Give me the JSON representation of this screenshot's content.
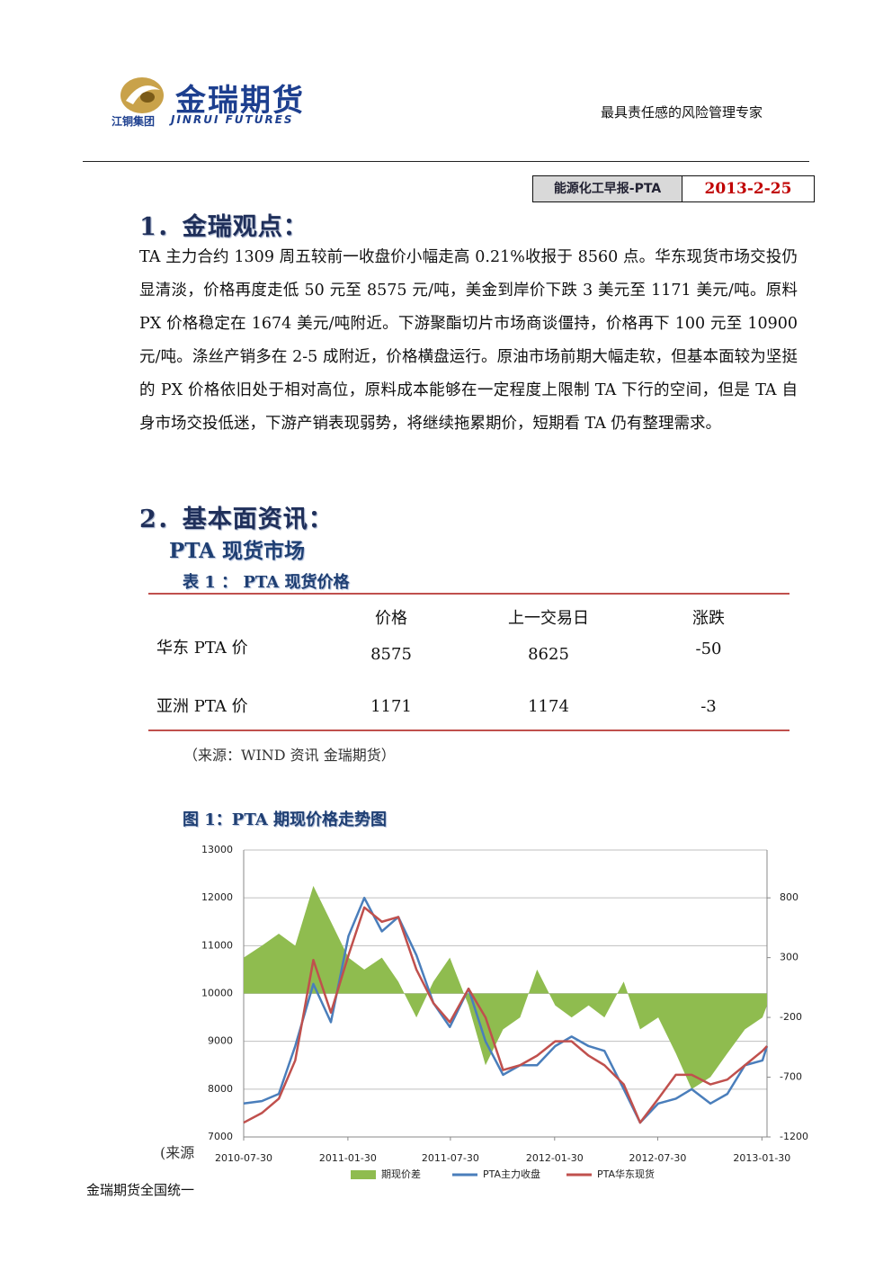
{
  "header": {
    "logo_name": "金瑞期货",
    "logo_group": "江铜集团",
    "logo_english": "JINRUI FUTURES",
    "slogan": "最具责任感的风险管理专家",
    "report": "能源化工早报-PTA",
    "date": "2013-2-25"
  },
  "sections": [
    {
      "title": "1．金瑞观点：",
      "text": "TA 主力合约 1309 周五较前一收盘价小幅走高 0.21%收报于 8560 点。华东现货市场交投仍显清淡，价格再度走低 50 元至 8575 元/吨，美金到岸价下跌 3 美元至 1171 美元/吨。原料 PX 价格稳定在 1674 美元/吨附近。下游聚酯切片市场商谈僵持，价格再下 100 元至 10900 元/吨。涤丝产销多在 2-5 成附近，价格横盘运行。原油市场前期大幅走软，但基本面较为坚挺的 PX 价格依旧处于相对高位，原料成本能够在一定程度上限制 TA 下行的空间，但是 TA 自身市场交投低迷，下游产销表现弱势，将继续拖累期价，短期看 TA 仍有整理需求。"
    },
    {
      "title": "2．基本面资讯：",
      "subtitle": "PTA 现货市场"
    }
  ],
  "table": {
    "caption": "表 1 ： PTA 现货价格",
    "columns": [
      "价格",
      "上一交易日",
      "涨跌"
    ],
    "rows": [
      {
        "label": "华东 PTA 价",
        "cells": [
          8575,
          8625,
          -50
        ]
      },
      {
        "label": "亚洲 PTA 价",
        "cells": [
          1171,
          1174,
          -3
        ]
      }
    ],
    "source": "（来源：WIND 资讯 金瑞期货）"
  },
  "chart_data": {
    "type": "line",
    "title": "图 1：PTA 期现价格走势图",
    "x": [
      "2010-07-30",
      "2010-08-31",
      "2010-09-30",
      "2010-10-29",
      "2010-11-30",
      "2010-12-31",
      "2011-01-31",
      "2011-02-28",
      "2011-03-31",
      "2011-04-29",
      "2011-05-31",
      "2011-06-30",
      "2011-07-29",
      "2011-08-31",
      "2011-09-30",
      "2011-10-31",
      "2011-11-30",
      "2011-12-30",
      "2012-01-31",
      "2012-02-29",
      "2012-03-30",
      "2012-04-27",
      "2012-05-31",
      "2012-06-29",
      "2012-07-31",
      "2012-08-31",
      "2012-09-28",
      "2012-10-31",
      "2012-11-30",
      "2012-12-31",
      "2013-01-31",
      "2013-02-08"
    ],
    "series": [
      {
        "name": "期现价差",
        "kind": "area",
        "axis": "y2",
        "color": "#8fbc4f",
        "values": [
          300,
          400,
          500,
          400,
          900,
          600,
          300,
          200,
          300,
          100,
          -200,
          100,
          300,
          -100,
          -600,
          -300,
          -200,
          200,
          -100,
          -200,
          -100,
          -200,
          100,
          -300,
          -200,
          -500,
          -800,
          -700,
          -500,
          -300,
          -200,
          -100
        ]
      },
      {
        "name": "PTA主力收盘",
        "kind": "line",
        "color": "#4a7ebb",
        "values": [
          7700,
          7750,
          7900,
          8900,
          10200,
          9400,
          11200,
          12000,
          11300,
          11600,
          10800,
          9800,
          9300,
          10100,
          9000,
          8300,
          8500,
          8500,
          8900,
          9100,
          8900,
          8800,
          8000,
          7300,
          7700,
          7800,
          8000,
          7700,
          7900,
          8500,
          8600,
          8900
        ]
      },
      {
        "name": "PTA华东现货",
        "kind": "line",
        "color": "#c0504d",
        "values": [
          7300,
          7500,
          7800,
          8600,
          10700,
          9600,
          10800,
          11800,
          11500,
          11600,
          10500,
          9800,
          9400,
          10100,
          9500,
          8400,
          8500,
          8700,
          9000,
          9000,
          8700,
          8500,
          8100,
          7300,
          7800,
          8300,
          8300,
          8100,
          8200,
          8500,
          8800,
          8900
        ]
      }
    ],
    "xlim": [
      "2010-07-30",
      "2013-02-08"
    ],
    "xticks": [
      "2010-07-30",
      "2011-01-30",
      "2011-07-30",
      "2012-01-30",
      "2012-07-30",
      "2013-01-30"
    ],
    "ylim": [
      7000,
      13000
    ],
    "yticks": [
      7000,
      8000,
      9000,
      10000,
      11000,
      12000,
      13000
    ],
    "y2lim": [
      -1200,
      1200
    ],
    "y2ticks": [
      -1200,
      -700,
      -200,
      300,
      800
    ],
    "grid": true,
    "legend": "bottom"
  },
  "footer": {
    "source_fragment": "(来源",
    "hotline_fragment": "金瑞期货全国统一"
  }
}
